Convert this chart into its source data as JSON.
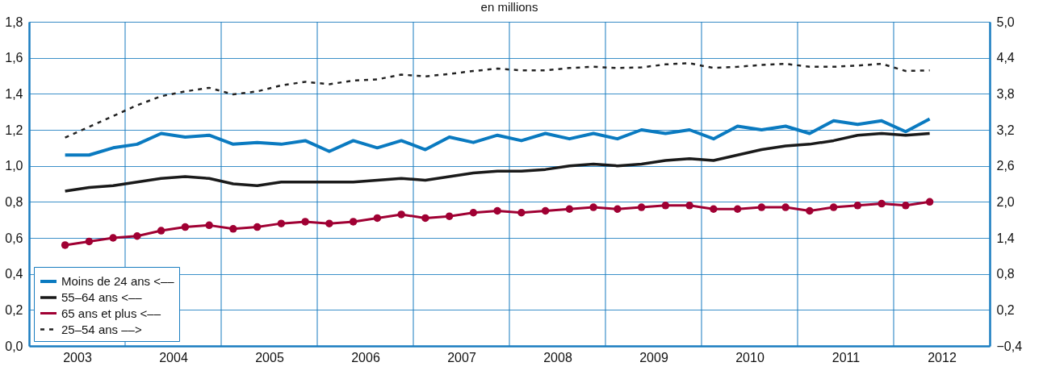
{
  "chart_data": {
    "type": "line",
    "subtitle": "en millions",
    "x": [
      2003.375,
      2003.625,
      2003.875,
      2004.125,
      2004.375,
      2004.625,
      2004.875,
      2005.125,
      2005.375,
      2005.625,
      2005.875,
      2006.125,
      2006.375,
      2006.625,
      2006.875,
      2007.125,
      2007.375,
      2007.625,
      2007.875,
      2008.125,
      2008.375,
      2008.625,
      2008.875,
      2009.125,
      2009.375,
      2009.625,
      2009.875,
      2010.125,
      2010.375,
      2010.625,
      2010.875,
      2011.125,
      2011.375,
      2011.625,
      2011.875,
      2012.125,
      2012.375
    ],
    "series": [
      {
        "name": "Moins de 24 ans <––",
        "color": "#0a7ac0",
        "values": [
          1.06,
          1.06,
          1.1,
          1.12,
          1.18,
          1.16,
          1.17,
          1.12,
          1.13,
          1.12,
          1.14,
          1.08,
          1.14,
          1.1,
          1.14,
          1.09,
          1.16,
          1.13,
          1.17,
          1.14,
          1.18,
          1.15,
          1.18,
          1.15,
          1.2,
          1.18,
          1.2,
          1.15,
          1.22,
          1.2,
          1.22,
          1.18,
          1.25,
          1.23,
          1.25,
          1.19,
          1.26
        ]
      },
      {
        "name": "55–64 ans <––",
        "color": "#1a1a1a",
        "values": [
          0.86,
          0.88,
          0.89,
          0.91,
          0.93,
          0.94,
          0.93,
          0.9,
          0.89,
          0.91,
          0.91,
          0.91,
          0.91,
          0.92,
          0.93,
          0.92,
          0.94,
          0.96,
          0.97,
          0.97,
          0.98,
          1.0,
          1.01,
          1.0,
          1.01,
          1.03,
          1.04,
          1.03,
          1.06,
          1.09,
          1.11,
          1.12,
          1.14,
          1.17,
          1.18,
          1.17,
          1.18
        ]
      },
      {
        "name": "65 ans et plus <––",
        "color": "#a00033",
        "marker": "circle",
        "values": [
          0.56,
          0.58,
          0.6,
          0.61,
          0.64,
          0.66,
          0.67,
          0.65,
          0.66,
          0.68,
          0.69,
          0.68,
          0.69,
          0.71,
          0.73,
          0.71,
          0.72,
          0.74,
          0.75,
          0.74,
          0.75,
          0.76,
          0.77,
          0.76,
          0.77,
          0.78,
          0.78,
          0.76,
          0.76,
          0.77,
          0.77,
          0.75,
          0.77,
          0.78,
          0.79,
          0.78,
          0.8
        ]
      },
      {
        "name": "25–54 ans ––>",
        "color": "#222222",
        "axis": "y2",
        "line_style": "dashed",
        "values": [
          3.07,
          3.25,
          3.43,
          3.61,
          3.76,
          3.84,
          3.9,
          3.79,
          3.84,
          3.94,
          4.0,
          3.96,
          4.02,
          4.04,
          4.12,
          4.09,
          4.13,
          4.18,
          4.22,
          4.19,
          4.19,
          4.23,
          4.25,
          4.23,
          4.24,
          4.29,
          4.31,
          4.23,
          4.25,
          4.28,
          4.3,
          4.25,
          4.25,
          4.27,
          4.3,
          4.18,
          4.19
        ]
      }
    ],
    "xlim": [
      2003,
      2013
    ],
    "xticks": [
      {
        "value": 2003.5,
        "label": "2003"
      },
      {
        "value": 2004.5,
        "label": "2004"
      },
      {
        "value": 2005.5,
        "label": "2005"
      },
      {
        "value": 2006.5,
        "label": "2006"
      },
      {
        "value": 2007.5,
        "label": "2007"
      },
      {
        "value": 2008.5,
        "label": "2008"
      },
      {
        "value": 2009.5,
        "label": "2009"
      },
      {
        "value": 2010.5,
        "label": "2010"
      },
      {
        "value": 2011.5,
        "label": "2011"
      },
      {
        "value": 2012.5,
        "label": "2012"
      },
      {
        "value": 2004,
        "label": null
      },
      {
        "value": 2005,
        "label": null
      },
      {
        "value": 2006,
        "label": null
      },
      {
        "value": 2007,
        "label": null
      },
      {
        "value": 2008,
        "label": null
      },
      {
        "value": 2009,
        "label": null
      },
      {
        "value": 2010,
        "label": null
      },
      {
        "value": 2011,
        "label": null
      },
      {
        "value": 2012,
        "label": null
      }
    ],
    "ylim": [
      0,
      1.8
    ],
    "yticks": [
      {
        "value": 0,
        "label": "0,0"
      },
      {
        "value": 0.2,
        "label": "0,2"
      },
      {
        "value": 0.4,
        "label": "0,4"
      },
      {
        "value": 0.6,
        "label": "0,6"
      },
      {
        "value": 0.8,
        "label": "0,8"
      },
      {
        "value": 1.0,
        "label": "1,0"
      },
      {
        "value": 1.2,
        "label": "1,2"
      },
      {
        "value": 1.4,
        "label": "1,4"
      },
      {
        "value": 1.6,
        "label": "1,6"
      },
      {
        "value": 1.8,
        "label": "1,8"
      }
    ],
    "y2lim": [
      -0.4,
      5.0
    ],
    "y2ticks": [
      {
        "value": -0.4,
        "label": "−0,4"
      },
      {
        "value": 0.2,
        "label": "0,2"
      },
      {
        "value": 0.8,
        "label": "0,8"
      },
      {
        "value": 1.4,
        "label": "1,4"
      },
      {
        "value": 2.0,
        "label": "2,0"
      },
      {
        "value": 2.6,
        "label": "2,6"
      },
      {
        "value": 3.2,
        "label": "3,2"
      },
      {
        "value": 3.8,
        "label": "3,8"
      },
      {
        "value": 4.4,
        "label": "4,4"
      },
      {
        "value": 5.0,
        "label": "5,0"
      }
    ],
    "grid": true,
    "legend": "bottom left"
  }
}
